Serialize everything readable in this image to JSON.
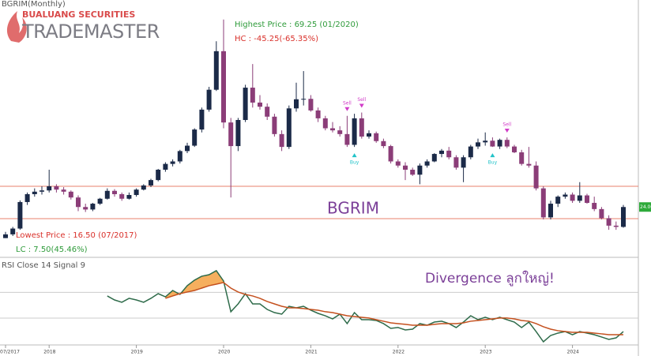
{
  "header": {
    "brand_top": "BUALUANG SECURITIES",
    "brand_main": "TRADEMASTER",
    "symbol": "BGRIM(Monthly)"
  },
  "chart_data": {
    "type": "candlestick",
    "watermark": "BGRIM",
    "annotations": {
      "high_text": "Highest Price : 69.25 (01/2020)",
      "hc_text": "HC : -45.25(-65.35%)",
      "low_text": "Lowest Price : 16.50 (07/2017)",
      "lc_text": "LC : 7.50(45.46%)",
      "comment": "Divergence ลูกใหญ่!"
    },
    "up_color": "#1b2a48",
    "down_color": "#8b3d78",
    "ylim": [
      13,
      73
    ],
    "hlines": [
      29.0,
      21.2
    ],
    "hline_color": "#e8806e",
    "last_price": {
      "value": 24,
      "label": "24.00"
    },
    "categories": [
      "07/2017",
      null,
      null,
      null,
      null,
      null,
      "2018",
      null,
      null,
      null,
      null,
      null,
      null,
      null,
      null,
      null,
      null,
      null,
      "2019",
      null,
      null,
      null,
      null,
      null,
      null,
      null,
      null,
      null,
      null,
      null,
      "2020",
      null,
      null,
      null,
      null,
      null,
      null,
      null,
      null,
      null,
      null,
      null,
      "2021",
      null,
      null,
      null,
      null,
      null,
      null,
      null,
      null,
      null,
      null,
      null,
      "2022",
      null,
      null,
      null,
      null,
      null,
      null,
      null,
      null,
      null,
      null,
      null,
      "2023",
      null,
      null,
      null,
      null,
      null,
      null,
      null,
      null,
      null,
      null,
      null,
      "2024",
      null,
      null,
      null,
      null,
      null,
      null,
      null
    ],
    "candles": [
      [
        16.5,
        18.0,
        16.5,
        17.4
      ],
      [
        17.4,
        19.2,
        17.0,
        18.8
      ],
      [
        18.8,
        25.6,
        18.5,
        25.2
      ],
      [
        25.2,
        27.5,
        24.5,
        27.1
      ],
      [
        27.1,
        28.5,
        26.5,
        27.7
      ],
      [
        27.7,
        29.0,
        27.0,
        28.0
      ],
      [
        28.0,
        33.0,
        27.5,
        29.0
      ],
      [
        29.0,
        29.5,
        27.5,
        28.2
      ],
      [
        28.2,
        28.8,
        27.0,
        27.7
      ],
      [
        27.7,
        28.0,
        25.8,
        26.3
      ],
      [
        26.3,
        26.8,
        23.0,
        24.0
      ],
      [
        24.0,
        24.8,
        22.8,
        23.4
      ],
      [
        23.4,
        25.0,
        23.0,
        24.8
      ],
      [
        24.8,
        26.2,
        24.5,
        26.0
      ],
      [
        26.0,
        28.5,
        25.8,
        27.9
      ],
      [
        27.9,
        28.3,
        26.5,
        27.1
      ],
      [
        27.1,
        27.5,
        25.5,
        26.0
      ],
      [
        26.0,
        27.5,
        25.8,
        26.9
      ],
      [
        26.9,
        28.5,
        26.5,
        28.2
      ],
      [
        28.2,
        29.5,
        28.0,
        29.2
      ],
      [
        29.2,
        30.8,
        28.8,
        30.5
      ],
      [
        30.5,
        33.2,
        30.2,
        33.0
      ],
      [
        33.0,
        34.8,
        32.5,
        34.4
      ],
      [
        34.4,
        35.5,
        33.8,
        35.0
      ],
      [
        35.0,
        37.8,
        34.5,
        37.5
      ],
      [
        37.5,
        39.5,
        37.0,
        38.8
      ],
      [
        38.8,
        43.0,
        38.5,
        42.7
      ],
      [
        42.7,
        48.0,
        42.0,
        47.5
      ],
      [
        47.5,
        53.0,
        47.0,
        52.3
      ],
      [
        52.3,
        64.0,
        52.0,
        61.6
      ],
      [
        61.6,
        69.25,
        43.0,
        44.4
      ],
      [
        44.4,
        45.5,
        26.3,
        38.7
      ],
      [
        38.7,
        45.5,
        37.5,
        45.0
      ],
      [
        45.0,
        53.5,
        44.5,
        52.8
      ],
      [
        52.8,
        58.5,
        48.0,
        49.2
      ],
      [
        49.2,
        51.0,
        47.5,
        48.2
      ],
      [
        48.2,
        49.0,
        45.0,
        45.8
      ],
      [
        45.8,
        46.5,
        41.0,
        41.6
      ],
      [
        41.6,
        42.5,
        37.5,
        38.5
      ],
      [
        38.5,
        48.5,
        38.0,
        47.8
      ],
      [
        47.8,
        54.0,
        47.0,
        50.0
      ],
      [
        50.0,
        56.8,
        48.5,
        50.1
      ],
      [
        50.1,
        51.0,
        47.0,
        47.3
      ],
      [
        47.3,
        48.0,
        44.5,
        45.4
      ],
      [
        45.4,
        46.0,
        42.5,
        43.0
      ],
      [
        43.0,
        44.5,
        42.0,
        42.5
      ],
      [
        42.5,
        43.5,
        41.0,
        41.6
      ],
      [
        41.6,
        46.0,
        38.5,
        39.0
      ],
      [
        39.0,
        46.5,
        38.5,
        45.4
      ],
      [
        45.4,
        46.8,
        40.5,
        41.0
      ],
      [
        41.0,
        42.5,
        40.5,
        41.8
      ],
      [
        41.8,
        42.2,
        39.5,
        39.9
      ],
      [
        39.9,
        40.5,
        38.2,
        38.7
      ],
      [
        38.7,
        39.0,
        34.5,
        35.0
      ],
      [
        35.0,
        35.5,
        33.5,
        34.0
      ],
      [
        34.0,
        34.8,
        30.5,
        33.0
      ],
      [
        33.0,
        33.5,
        31.5,
        31.8
      ],
      [
        31.8,
        34.5,
        29.5,
        34.0
      ],
      [
        34.0,
        35.5,
        33.5,
        35.0
      ],
      [
        35.0,
        37.0,
        34.8,
        36.8
      ],
      [
        36.8,
        38.0,
        36.0,
        37.6
      ],
      [
        37.6,
        38.5,
        35.5,
        36.0
      ],
      [
        36.0,
        36.5,
        33.0,
        33.5
      ],
      [
        33.5,
        36.5,
        30.0,
        36.0
      ],
      [
        36.0,
        39.0,
        35.5,
        38.6
      ],
      [
        38.6,
        40.5,
        38.0,
        39.6
      ],
      [
        39.6,
        42.0,
        38.8,
        40.0
      ],
      [
        40.0,
        40.8,
        38.5,
        38.6
      ],
      [
        38.6,
        40.5,
        38.0,
        40.2
      ],
      [
        40.2,
        40.8,
        38.2,
        38.6
      ],
      [
        38.6,
        39.0,
        37.0,
        37.2
      ],
      [
        37.2,
        37.8,
        34.0,
        34.4
      ],
      [
        34.4,
        38.5,
        33.5,
        34.0
      ],
      [
        34.0,
        35.0,
        28.0,
        28.5
      ],
      [
        28.5,
        29.0,
        21.0,
        21.5
      ],
      [
        21.5,
        25.5,
        21.0,
        24.8
      ],
      [
        24.8,
        26.8,
        24.0,
        26.5
      ],
      [
        26.5,
        27.5,
        26.0,
        27.0
      ],
      [
        27.0,
        27.5,
        25.0,
        25.5
      ],
      [
        25.5,
        30.0,
        25.0,
        26.8
      ],
      [
        26.8,
        27.2,
        24.8,
        25.0
      ],
      [
        25.0,
        26.5,
        23.0,
        23.5
      ],
      [
        23.5,
        24.0,
        21.0,
        21.3
      ],
      [
        21.3,
        22.0,
        18.5,
        19.5
      ],
      [
        19.5,
        20.5,
        18.5,
        19.2
      ],
      [
        19.2,
        24.5,
        19.0,
        24.0
      ]
    ],
    "signals": [
      {
        "index": 47,
        "label": "Sell"
      },
      {
        "index": 48,
        "label": "Buy"
      },
      {
        "index": 49,
        "label": "Sell"
      },
      {
        "index": 67,
        "label": "Buy"
      },
      {
        "index": 69,
        "label": "Sell"
      }
    ],
    "rsi": {
      "title": "RSI Close 14 Signal 9",
      "ylim": [
        10,
        90
      ],
      "levels": [
        65,
        38
      ],
      "series": [
        {
          "name": "RSI",
          "color": "#2e6b4a",
          "values": [
            null,
            null,
            null,
            null,
            null,
            null,
            null,
            null,
            null,
            null,
            null,
            null,
            null,
            null,
            61.2,
            57,
            54.6,
            58.7,
            57,
            54.6,
            58.7,
            63.6,
            60.3,
            66.9,
            62.8,
            71.9,
            77.7,
            81.8,
            83.4,
            87.6,
            76.8,
            44.7,
            52.9,
            63.6,
            52.9,
            52.9,
            47.1,
            43.8,
            42.2,
            50.4,
            48.8,
            50.4,
            46.3,
            43,
            40.5,
            37.2,
            42.2,
            32.3,
            43.8,
            36.4,
            36.4,
            35.6,
            32.3,
            27.3,
            28.2,
            25.7,
            26.5,
            32.3,
            30.6,
            33.9,
            34.8,
            32.3,
            28.2,
            33.9,
            40.5,
            36.4,
            38.9,
            36.4,
            38.9,
            36.4,
            33.9,
            28.2,
            33.9,
            24,
            13.3,
            19.9,
            22.4,
            24,
            20.7,
            24,
            22.4,
            20.7,
            18.3,
            15.8,
            17.4,
            24
          ]
        },
        {
          "name": "Signal",
          "color": "#c4501e",
          "values": [
            null,
            null,
            null,
            null,
            null,
            null,
            null,
            null,
            null,
            null,
            null,
            null,
            null,
            null,
            null,
            null,
            null,
            null,
            null,
            null,
            null,
            null,
            58.7,
            61.2,
            63.6,
            65.3,
            66.9,
            69.4,
            71.9,
            73.5,
            75.2,
            69.4,
            65.3,
            62.8,
            61.2,
            58.7,
            55.4,
            52.9,
            50.4,
            48.8,
            48.8,
            48,
            47.1,
            46.3,
            44.7,
            43.8,
            42.2,
            40.5,
            39.7,
            38.9,
            38.1,
            36.4,
            34.8,
            33.1,
            32.3,
            31.5,
            30.6,
            30.6,
            30.6,
            31.5,
            32.3,
            32.3,
            32.3,
            33.1,
            34.8,
            35.6,
            36.4,
            37.2,
            38.1,
            38.1,
            37.2,
            35.6,
            34.8,
            32.3,
            29,
            26.5,
            24.9,
            24,
            23.2,
            23.2,
            23.2,
            22.4,
            21.6,
            20.7,
            20.7,
            20.7
          ]
        }
      ]
    }
  }
}
